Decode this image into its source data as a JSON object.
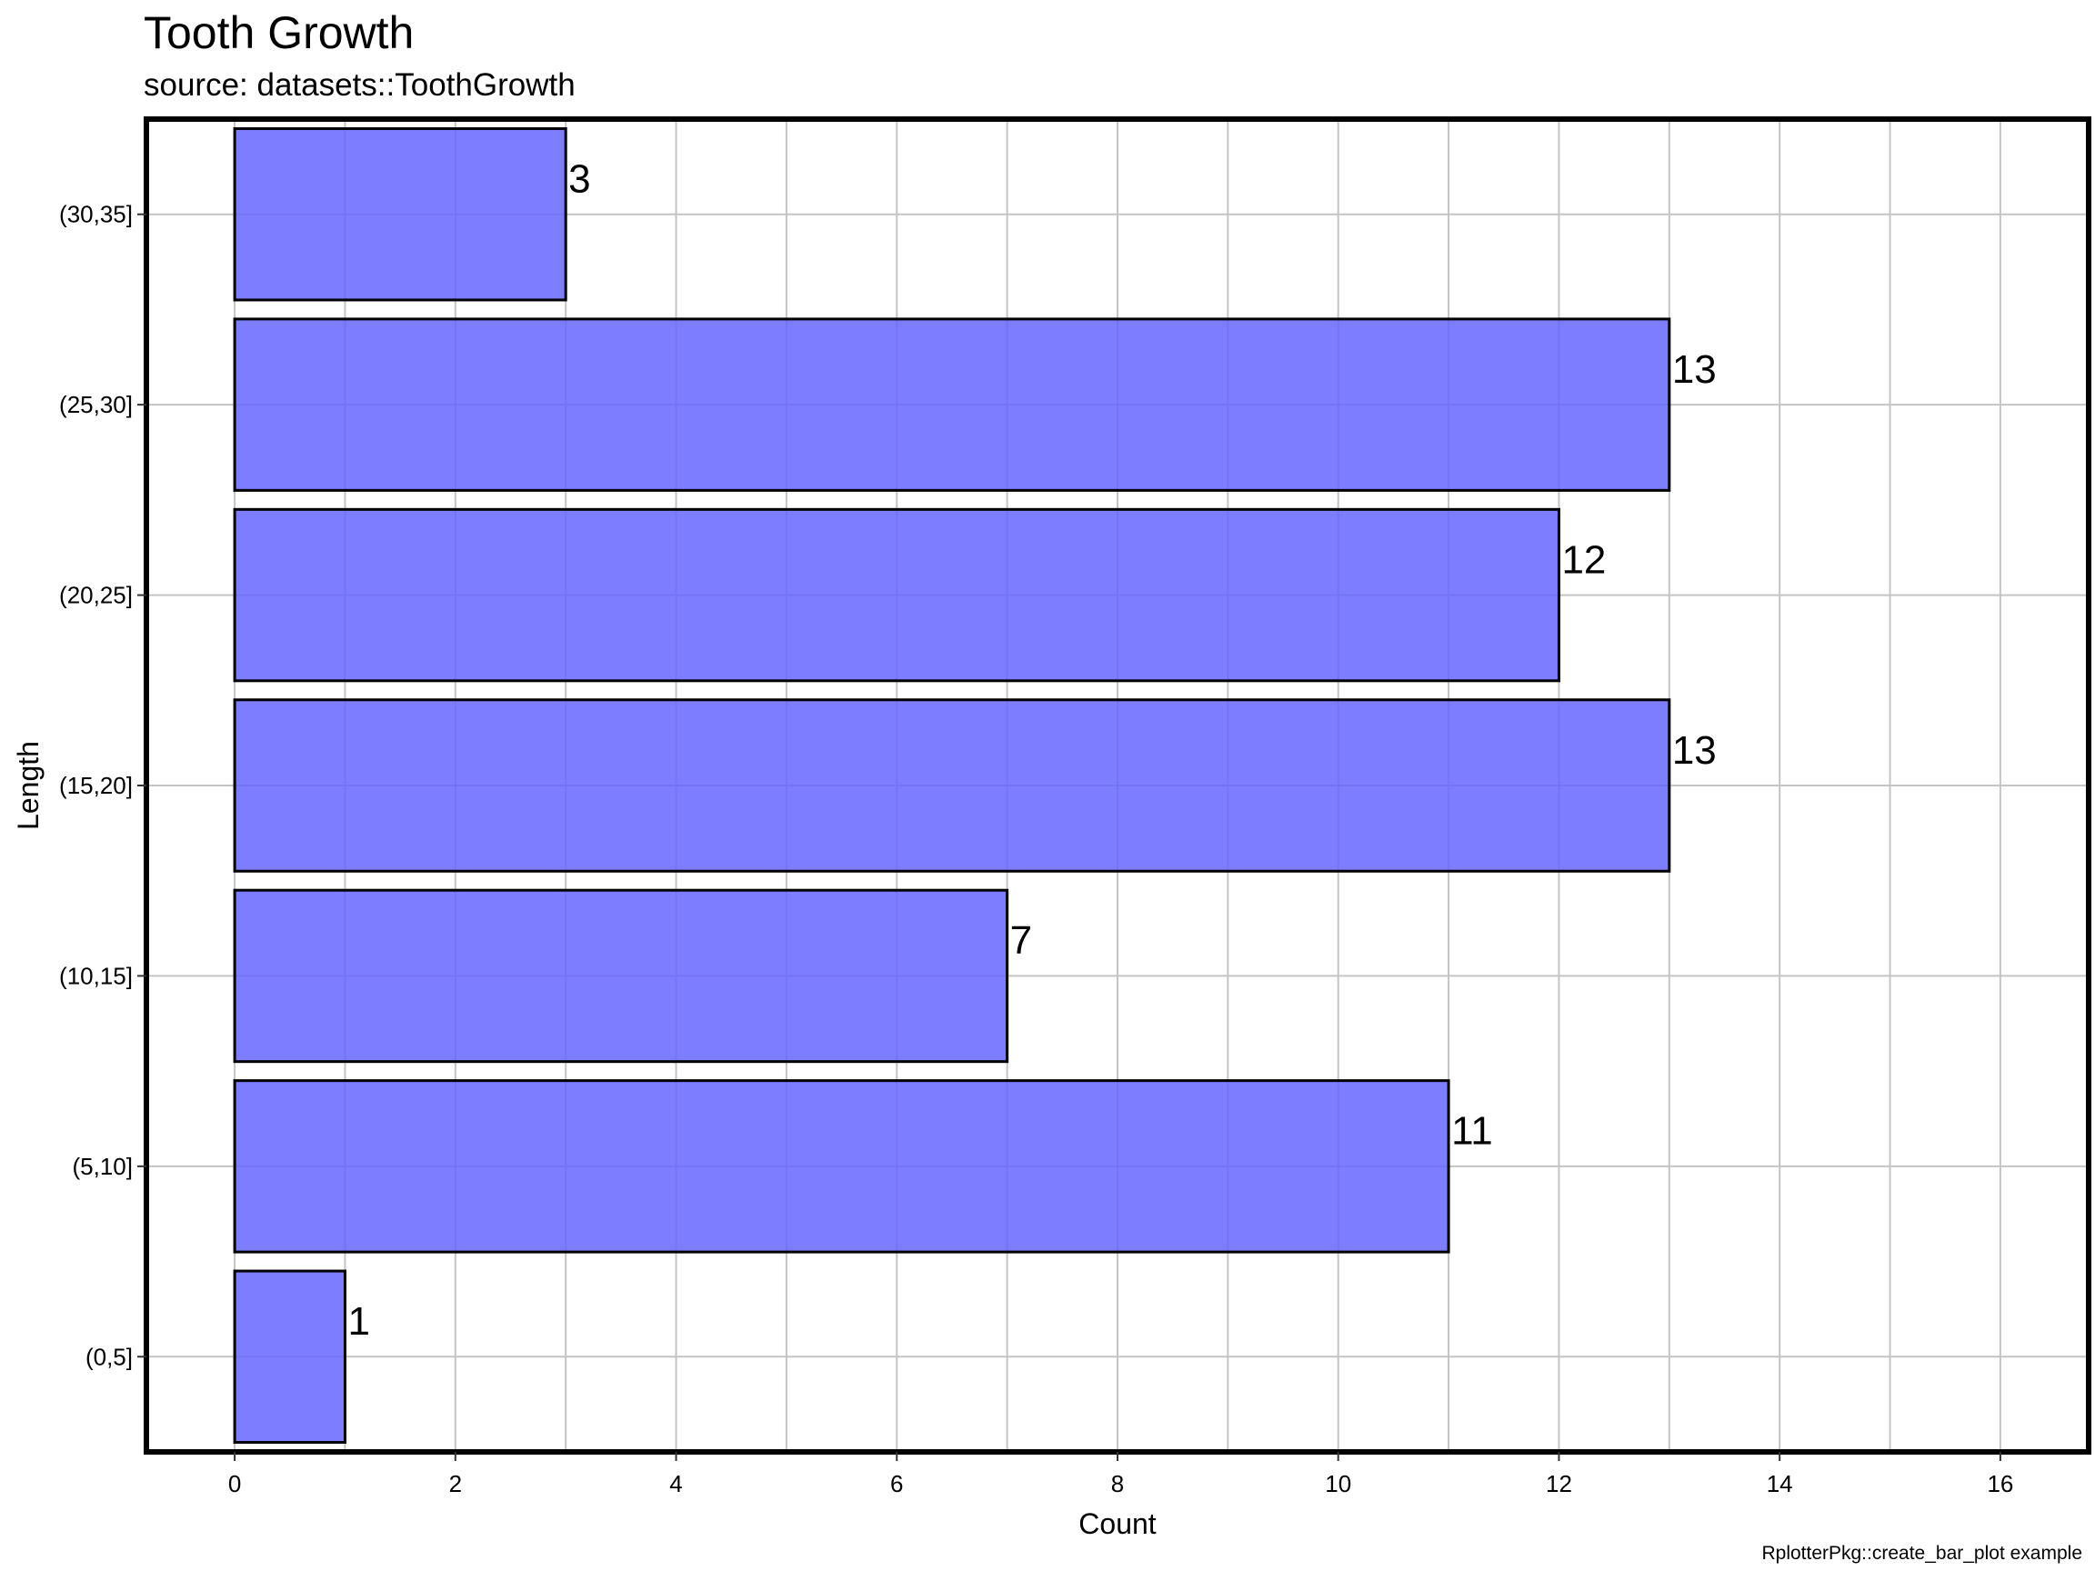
{
  "chart_data": {
    "type": "bar",
    "orientation": "horizontal",
    "title": "Tooth Growth",
    "subtitle": "source: datasets::ToothGrowth",
    "caption": "RplotterPkg::create_bar_plot example",
    "xlabel": "Count",
    "ylabel": "Length",
    "categories": [
      "(0,5]",
      "(5,10]",
      "(10,15]",
      "(15,20]",
      "(20,25]",
      "(25,30]",
      "(30,35]"
    ],
    "values": [
      1,
      11,
      7,
      13,
      12,
      13,
      3
    ],
    "xlim": [
      -0.8,
      16.8
    ],
    "x_ticks": [
      0,
      2,
      4,
      6,
      8,
      10,
      12,
      14,
      16
    ],
    "grid": true,
    "bar_color": "#6666ff",
    "bar_outline_color": "#000000",
    "data_labels": true
  }
}
